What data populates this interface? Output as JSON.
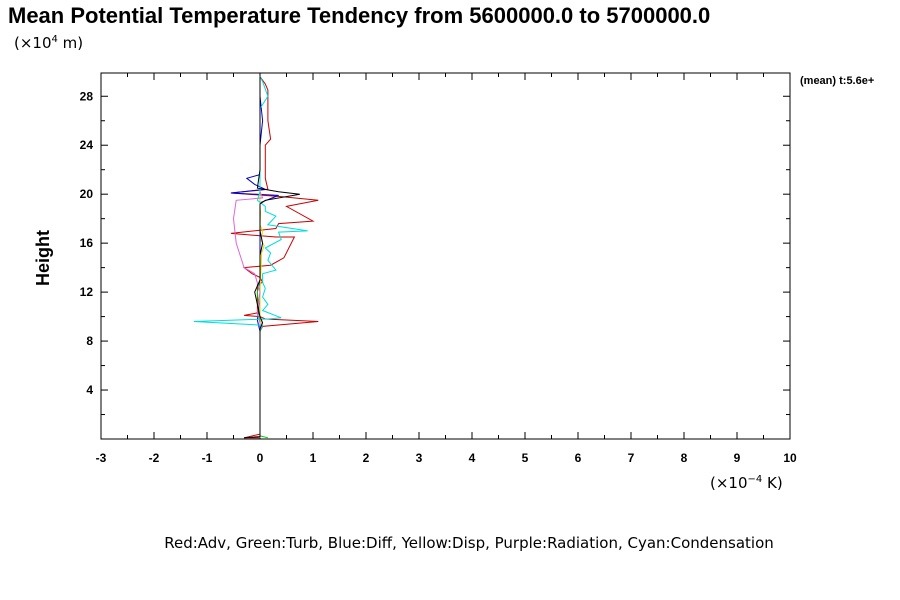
{
  "chart_data": {
    "type": "line",
    "title": "Mean Potential Temperature Tendency from 5600000.0 to 5700000.0",
    "y_unit_prefix": "(×10",
    "y_unit_exp": "4",
    "y_unit_suffix": " m)",
    "x_unit_prefix": "(×10",
    "x_unit_exp": "−4",
    "x_unit_suffix": " K)",
    "ylabel": "Height",
    "side_note": "(mean) t:5.6e+",
    "legend_text": "Red:Adv, Green:Turb, Blue:Diff, Yellow:Disp, Purple:Radiation, Cyan:Condensation",
    "xlim": [
      -3,
      10
    ],
    "ylim": [
      0,
      29.9
    ],
    "x_ticks": [
      "-3",
      "-2",
      "-1",
      "0",
      "1",
      "2",
      "3",
      "4",
      "5",
      "6",
      "7",
      "8",
      "9",
      "10"
    ],
    "y_ticks": [
      "4",
      "8",
      "12",
      "16",
      "20",
      "24",
      "28"
    ],
    "grid": false,
    "colors": {
      "Adv": "#cc0000",
      "Turb": "#00cc00",
      "Diff": "#0000cc",
      "Disp": "#dddd00",
      "Radiation": "#dd66dd",
      "Condensation": "#00dddd",
      "Total": "#000000"
    },
    "series": [
      {
        "key": "Adv",
        "points": [
          [
            0,
            0.1
          ],
          [
            -0.3,
            0.1
          ],
          [
            0,
            0.4
          ],
          [
            0,
            8.8
          ],
          [
            0.05,
            9.2
          ],
          [
            1.1,
            9.6
          ],
          [
            0.1,
            9.8
          ],
          [
            0,
            10.0
          ],
          [
            -0.3,
            10.1
          ],
          [
            -0.05,
            10.3
          ],
          [
            -0.05,
            12.6
          ],
          [
            0.05,
            12.8
          ],
          [
            0,
            13.2
          ],
          [
            -0.15,
            13.5
          ],
          [
            -0.3,
            14.0
          ],
          [
            0.2,
            14.2
          ],
          [
            0.45,
            14.8
          ],
          [
            0.65,
            16.5
          ],
          [
            0.3,
            16.5
          ],
          [
            -0.55,
            16.8
          ],
          [
            0.3,
            17.2
          ],
          [
            0.35,
            17.6
          ],
          [
            1.0,
            17.8
          ],
          [
            0.5,
            19.0
          ],
          [
            1.1,
            19.5
          ],
          [
            0.4,
            19.8
          ],
          [
            -0.55,
            20.1
          ],
          [
            0.15,
            20.4
          ],
          [
            0.1,
            21.3
          ],
          [
            0.1,
            24.0
          ],
          [
            0.2,
            24.5
          ],
          [
            0.15,
            26.0
          ],
          [
            0.15,
            28.5
          ],
          [
            0.1,
            29.0
          ],
          [
            0,
            29.6
          ]
        ]
      },
      {
        "key": "Turb",
        "points": [
          [
            0.15,
            0.1
          ],
          [
            0,
            0.25
          ],
          [
            0,
            1.0
          ],
          [
            0,
            8.8
          ],
          [
            0,
            9.5
          ],
          [
            -0.05,
            12.0
          ],
          [
            0,
            13.0
          ],
          [
            0,
            16.0
          ],
          [
            0,
            19.0
          ],
          [
            0,
            20.0
          ],
          [
            0,
            22.0
          ],
          [
            0,
            29.6
          ]
        ]
      },
      {
        "key": "Diff",
        "points": [
          [
            0,
            0.2
          ],
          [
            0,
            8.8
          ],
          [
            -0.05,
            9.7
          ],
          [
            0,
            12.0
          ],
          [
            0,
            16.0
          ],
          [
            0,
            19.3
          ],
          [
            0.35,
            19.9
          ],
          [
            -0.55,
            20.1
          ],
          [
            0.1,
            20.4
          ],
          [
            -0.1,
            20.8
          ],
          [
            -0.25,
            21.3
          ],
          [
            0,
            21.6
          ],
          [
            0,
            24.0
          ],
          [
            0.05,
            26.0
          ],
          [
            0,
            28.0
          ],
          [
            0,
            29.6
          ]
        ]
      },
      {
        "key": "Disp",
        "points": [
          [
            0,
            0.2
          ],
          [
            0,
            8.8
          ],
          [
            0.03,
            9.5
          ],
          [
            0,
            10.0
          ],
          [
            0,
            12.0
          ],
          [
            0.03,
            15.2
          ],
          [
            0.08,
            15.8
          ],
          [
            0.02,
            16.2
          ],
          [
            0.05,
            17.0
          ],
          [
            0,
            17.5
          ],
          [
            0.01,
            18.5
          ],
          [
            0,
            19.0
          ],
          [
            0,
            20.0
          ],
          [
            0,
            25.0
          ],
          [
            0,
            29.6
          ]
        ]
      },
      {
        "key": "Radiation",
        "points": [
          [
            0,
            0.2
          ],
          [
            0,
            8.8
          ],
          [
            0,
            9.5
          ],
          [
            -0.05,
            10.2
          ],
          [
            0,
            12.0
          ],
          [
            -0.1,
            13.5
          ],
          [
            -0.3,
            14.0
          ],
          [
            -0.45,
            16.0
          ],
          [
            -0.5,
            18.0
          ],
          [
            -0.45,
            19.5
          ],
          [
            0.05,
            19.7
          ],
          [
            0,
            20.2
          ],
          [
            0,
            22.0
          ],
          [
            0,
            29.6
          ]
        ]
      },
      {
        "key": "Condensation",
        "points": [
          [
            0,
            0.1
          ],
          [
            0,
            8.8
          ],
          [
            0.05,
            9.3
          ],
          [
            -1.25,
            9.6
          ],
          [
            0.15,
            9.8
          ],
          [
            0.4,
            9.9
          ],
          [
            0.05,
            10.5
          ],
          [
            0.15,
            11.0
          ],
          [
            0.05,
            11.6
          ],
          [
            0.1,
            12.3
          ],
          [
            0.05,
            12.8
          ],
          [
            0.05,
            13.5
          ],
          [
            0.3,
            13.8
          ],
          [
            0.15,
            14.6
          ],
          [
            0.2,
            15.2
          ],
          [
            0.1,
            15.6
          ],
          [
            0.4,
            16.3
          ],
          [
            0.35,
            16.9
          ],
          [
            0.9,
            17.0
          ],
          [
            0.15,
            17.5
          ],
          [
            0.3,
            18.2
          ],
          [
            0.1,
            18.6
          ],
          [
            0.1,
            19.0
          ],
          [
            -0.05,
            19.5
          ],
          [
            0,
            20.2
          ],
          [
            0,
            23.0
          ],
          [
            0,
            27.0
          ],
          [
            0.15,
            28.0
          ],
          [
            0.05,
            29.2
          ],
          [
            0,
            29.6
          ]
        ]
      },
      {
        "key": "Total",
        "points": [
          [
            -0.3,
            0.1
          ],
          [
            0,
            0.2
          ],
          [
            0,
            4.0
          ],
          [
            0,
            9.0
          ],
          [
            0.05,
            9.5
          ],
          [
            0,
            10.0
          ],
          [
            -0.05,
            11.0
          ],
          [
            -0.1,
            12.0
          ],
          [
            0,
            13.0
          ],
          [
            0,
            15.0
          ],
          [
            0.05,
            16.0
          ],
          [
            0,
            17.0
          ],
          [
            0,
            18.0
          ],
          [
            0,
            19.2
          ],
          [
            0.1,
            19.5
          ],
          [
            0.75,
            20.0
          ],
          [
            0.35,
            20.2
          ],
          [
            -0.05,
            20.5
          ],
          [
            0,
            22.0
          ],
          [
            0,
            24.0
          ],
          [
            0,
            27.0
          ],
          [
            0,
            29.6
          ]
        ]
      }
    ]
  }
}
